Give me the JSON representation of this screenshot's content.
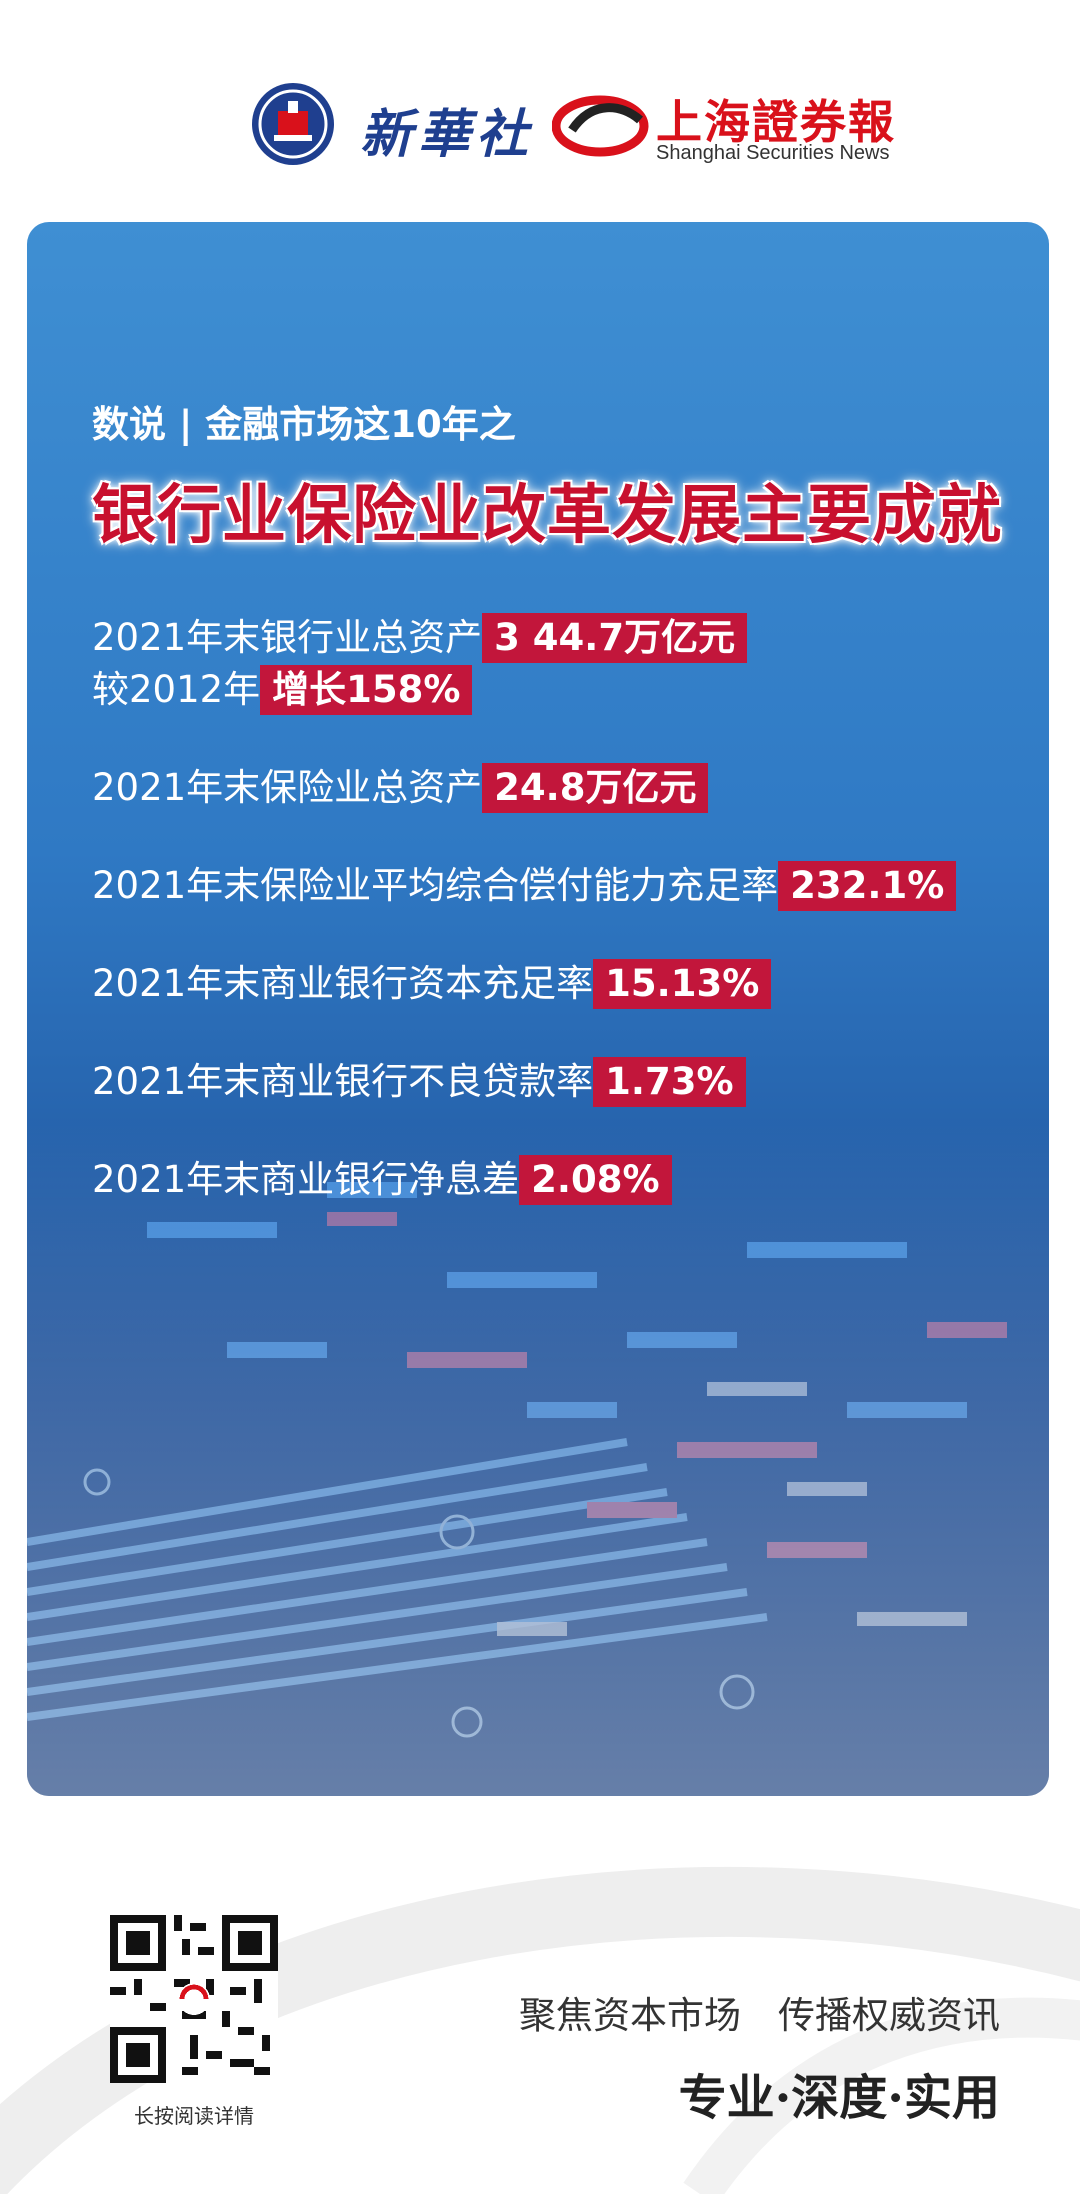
{
  "header": {
    "xinhua_text": "新華社",
    "ss_cn": "上海證券報",
    "ss_en": "Shanghai Securities News"
  },
  "panel": {
    "subtitle": "数说 | 金融市场这10年之",
    "title": "银行业保险业改革发展主要成就",
    "stats": [
      {
        "label": "2021年末银行业总资产",
        "value": "3 44.7万亿元"
      },
      {
        "label": "较2012年",
        "value": "增长158%"
      },
      {
        "label": "2021年末保险业总资产",
        "value": "24.8万亿元"
      },
      {
        "label": "2021年末保险业平均综合偿付能力充足率",
        "value": "232.1%"
      },
      {
        "label": "2021年末商业银行资本充足率",
        "value": "15.13%"
      },
      {
        "label": "2021年末商业银行不良贷款率",
        "value": "1.73%"
      },
      {
        "label": "2021年末商业银行净息差",
        "value": "2.08%"
      }
    ]
  },
  "footer": {
    "qr_label": "长按阅读详情",
    "slogan_line1": "聚焦资本市场　传播权威资讯",
    "slogan_line2": "专业·深度·实用"
  },
  "colors": {
    "highlight": "#c2163b",
    "title_red": "#c8102e",
    "panel_blue": "#2f79c4"
  }
}
